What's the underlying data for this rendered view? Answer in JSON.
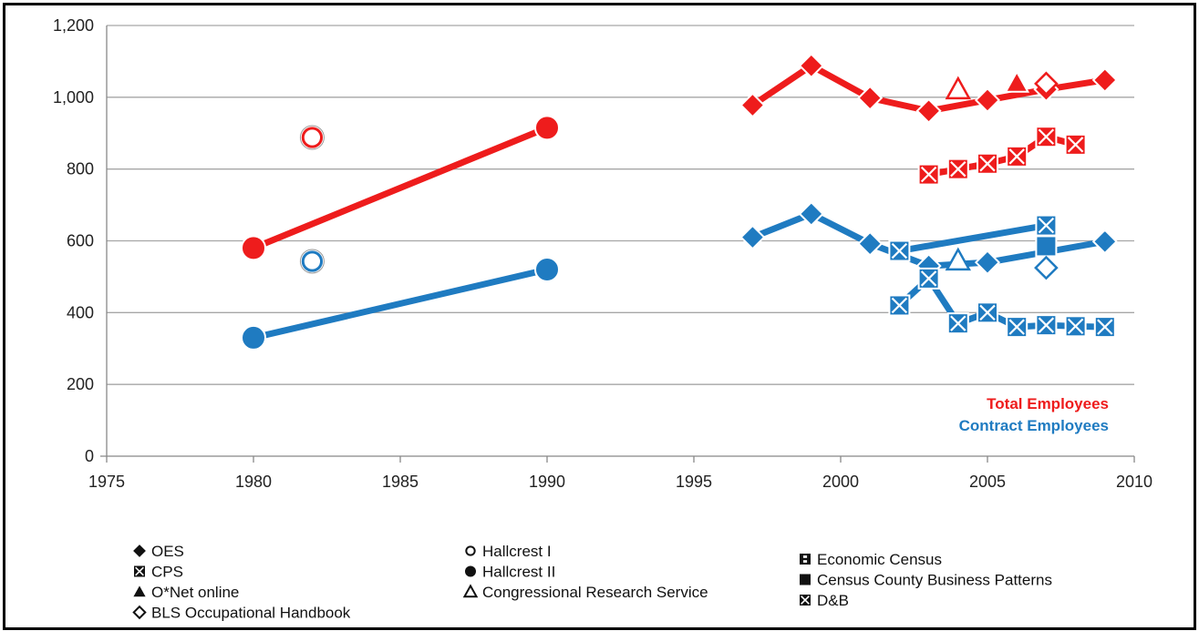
{
  "chart_data": {
    "type": "line",
    "xlim": [
      1975,
      2010
    ],
    "ylim": [
      0,
      1200
    ],
    "x_ticks": [
      "1975",
      "1980",
      "1985",
      "1990",
      "1995",
      "2000",
      "2005",
      "2010"
    ],
    "y_ticks": [
      "0",
      "200",
      "400",
      "600",
      "800",
      "1,000",
      "1,200"
    ],
    "grid": "horizontal",
    "annotations": [
      {
        "text": "Total Employees",
        "color": "#ee1c1c"
      },
      {
        "text": "Contract Employees",
        "color": "#1f7bc1"
      }
    ],
    "series": [
      {
        "group": "total",
        "color": "#ee1c1c",
        "marker": "circle-filled",
        "line": true,
        "x": [
          1980,
          1990
        ],
        "y": [
          580,
          915
        ]
      },
      {
        "group": "total",
        "color": "#ee1c1c",
        "marker": "circle-open",
        "line": false,
        "x": [
          1982
        ],
        "y": [
          888
        ]
      },
      {
        "group": "total",
        "color": "#ee1c1c",
        "marker": "diamond-filled",
        "line": true,
        "x": [
          1997,
          1999,
          2001,
          2003,
          2005,
          2007,
          2009
        ],
        "y": [
          978,
          1088,
          998,
          962,
          992,
          1022,
          1048
        ]
      },
      {
        "group": "total",
        "color": "#ee1c1c",
        "marker": "triangle-open",
        "line": false,
        "x": [
          2004
        ],
        "y": [
          1022
        ]
      },
      {
        "group": "total",
        "color": "#ee1c1c",
        "marker": "triangle-filled",
        "line": false,
        "x": [
          2006
        ],
        "y": [
          1040
        ]
      },
      {
        "group": "total",
        "color": "#ee1c1c",
        "marker": "diamond-open",
        "line": false,
        "x": [
          2007
        ],
        "y": [
          1038
        ]
      },
      {
        "group": "total",
        "color": "#ee1c1c",
        "marker": "xbox",
        "line": true,
        "x": [
          2003,
          2004,
          2005,
          2006,
          2007,
          2008
        ],
        "y": [
          785,
          800,
          815,
          835,
          890,
          868
        ]
      },
      {
        "group": "contract",
        "color": "#1f7bc1",
        "marker": "circle-filled",
        "line": true,
        "x": [
          1980,
          1990
        ],
        "y": [
          330,
          520
        ]
      },
      {
        "group": "contract",
        "color": "#1f7bc1",
        "marker": "circle-open",
        "line": false,
        "x": [
          1982
        ],
        "y": [
          543
        ]
      },
      {
        "group": "contract",
        "color": "#1f7bc1",
        "marker": "diamond-filled",
        "line": true,
        "x": [
          1997,
          1999,
          2001,
          2003,
          2005,
          2009
        ],
        "y": [
          610,
          675,
          592,
          530,
          540,
          598
        ]
      },
      {
        "group": "contract",
        "color": "#1f7bc1",
        "marker": "xbox",
        "line": true,
        "x": [
          2002,
          2007
        ],
        "y": [
          572,
          643
        ]
      },
      {
        "group": "contract",
        "color": "#1f7bc1",
        "marker": "triangle-open",
        "line": false,
        "x": [
          2004
        ],
        "y": [
          545
        ]
      },
      {
        "group": "contract",
        "color": "#1f7bc1",
        "marker": "square-filled",
        "line": false,
        "x": [
          2007
        ],
        "y": [
          585
        ]
      },
      {
        "group": "contract",
        "color": "#1f7bc1",
        "marker": "diamond-open",
        "line": false,
        "x": [
          2007
        ],
        "y": [
          525
        ]
      },
      {
        "group": "contract",
        "color": "#1f7bc1",
        "marker": "xbox",
        "line": true,
        "x": [
          2002,
          2003,
          2004,
          2005,
          2006,
          2007,
          2008,
          2009
        ],
        "y": [
          420,
          495,
          370,
          400,
          360,
          365,
          362,
          360
        ]
      }
    ]
  },
  "legend": {
    "col1": [
      {
        "marker": "diamond-filled",
        "label": "OES"
      },
      {
        "marker": "xbox",
        "label": "CPS"
      },
      {
        "marker": "triangle-filled",
        "label": "O*Net online"
      },
      {
        "marker": "diamond-open",
        "label": "BLS Occupational Handbook"
      }
    ],
    "col2": [
      {
        "marker": "circle-open",
        "label": "Hallcrest I"
      },
      {
        "marker": "circle-filled",
        "label": "Hallcrest II"
      },
      {
        "marker": "triangle-open",
        "label": "Congressional Research Service"
      }
    ],
    "col3": [
      {
        "marker": "ibox",
        "label": "Economic Census"
      },
      {
        "marker": "square-filled",
        "label": "Census County Business Patterns"
      },
      {
        "marker": "xbox",
        "label": "D&B"
      }
    ]
  }
}
